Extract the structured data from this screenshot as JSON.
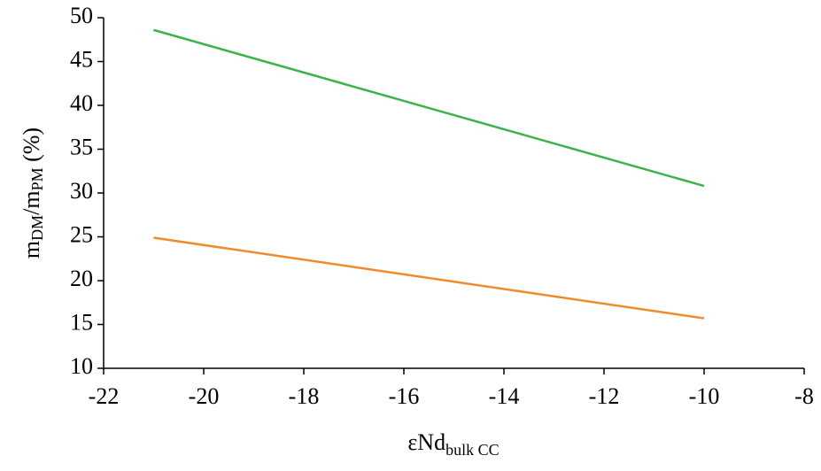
{
  "chart_data": {
    "type": "line",
    "ylabel": [
      "m",
      "DM",
      "/m",
      "PM",
      " (%)"
    ],
    "xlabel": [
      "εNd",
      "bulk CC"
    ],
    "x": [
      -21,
      -10
    ],
    "series": [
      {
        "color": "#3cb34a",
        "values": [
          48.6,
          30.8
        ]
      },
      {
        "color": "#f08a2c",
        "values": [
          24.9,
          15.7
        ]
      }
    ],
    "xlim": [
      -22,
      -8
    ],
    "xticks": [
      -22,
      -20,
      -18,
      -16,
      -14,
      -12,
      -10,
      -8
    ],
    "ylim": [
      10,
      50
    ],
    "yticks": [
      10,
      15,
      20,
      25,
      30,
      35,
      40,
      45,
      50
    ],
    "grid": false
  }
}
